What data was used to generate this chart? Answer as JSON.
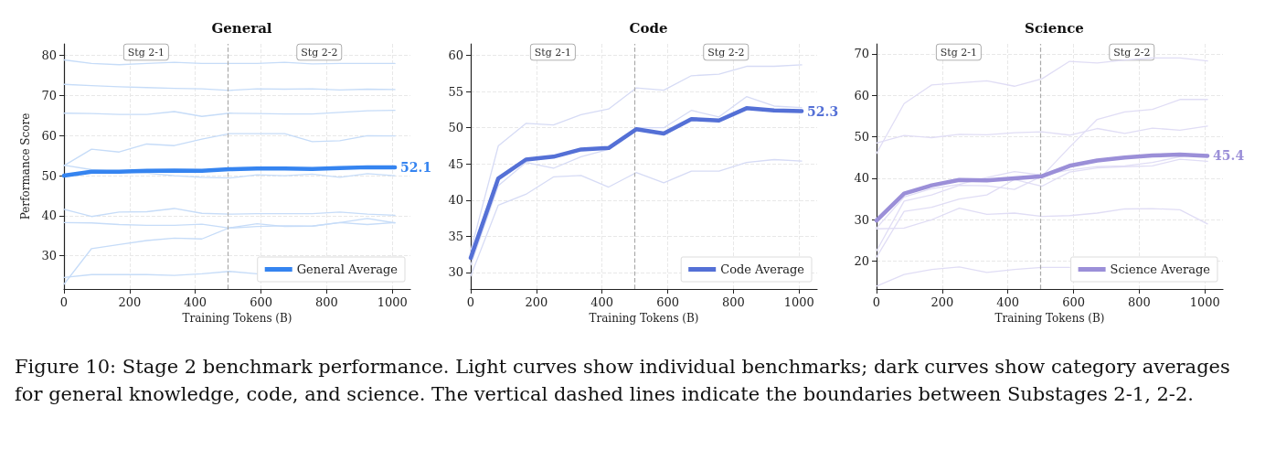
{
  "chart_data": [
    {
      "type": "line",
      "title": "General",
      "xlabel": "Training Tokens (B)",
      "ylabel": "Performance Score",
      "x": [
        0,
        84,
        168,
        252,
        336,
        420,
        504,
        588,
        672,
        756,
        840,
        924,
        1008
      ],
      "xlim": [
        0,
        1055
      ],
      "xticks": [
        0,
        200,
        400,
        600,
        800,
        1000
      ],
      "ylim": [
        21.7,
        82.9
      ],
      "yticks": [
        30,
        40,
        50,
        60,
        70,
        80
      ],
      "grid": true,
      "legend": "bottom right",
      "marker": "none",
      "line_style": "solid",
      "series": [
        {
          "color": "#c6dcf8",
          "values": [
            78.9,
            78,
            77.7,
            78,
            78.3,
            78,
            78,
            78,
            78.3,
            77.9,
            78,
            78,
            78
          ]
        },
        {
          "color": "#c6dcf8",
          "values": [
            72.8,
            72.5,
            72.2,
            72,
            71.8,
            71.7,
            71.3,
            71.7,
            71.6,
            71.7,
            71.4,
            71.6,
            71.5
          ]
        },
        {
          "color": "#c6dcf8",
          "values": [
            65.6,
            65.5,
            65.3,
            65.3,
            66,
            64.8,
            65.6,
            65.5,
            65.4,
            65.4,
            65.8,
            66.2,
            66.3
          ]
        },
        {
          "color": "#c6dcf8",
          "values": [
            52.5,
            56.6,
            55.9,
            57.9,
            57.5,
            59.1,
            60.5,
            60.5,
            60.5,
            58.5,
            58.7,
            60,
            59.9
          ]
        },
        {
          "color": "#c6dcf8",
          "values": [
            52.6,
            51.5,
            51,
            50.6,
            50,
            49.6,
            49.4,
            50.2,
            50,
            50.4,
            49.6,
            50.5,
            50
          ]
        },
        {
          "color": "#c6dcf8",
          "values": [
            41.6,
            39.8,
            40.9,
            41,
            41.8,
            40.6,
            40.4,
            40.5,
            40.5,
            40.5,
            40.9,
            40.4,
            40.1
          ]
        },
        {
          "color": "#c6dcf8",
          "values": [
            38.3,
            38.2,
            37.8,
            37.6,
            37.6,
            37.9,
            36.9,
            37.3,
            37.5,
            37.4,
            38.3,
            37.8,
            38.3
          ]
        },
        {
          "color": "#c6dcf8",
          "values": [
            22.9,
            31.8,
            32.8,
            33.8,
            34.4,
            34.2,
            37,
            38,
            37.3,
            37.4,
            38.3,
            39.3,
            38.2
          ]
        },
        {
          "color": "#c6dcf8",
          "values": [
            24.6,
            25.3,
            25.3,
            25.3,
            25.1,
            25.5,
            26.1,
            25.5,
            null,
            null,
            null,
            null,
            null
          ]
        },
        {
          "name": "General Average",
          "color": "#3584f0",
          "values": [
            50,
            51,
            51,
            51.2,
            51.3,
            51.2,
            51.6,
            51.8,
            51.8,
            51.7,
            51.9,
            52.1,
            52.1
          ],
          "value_labels": [
            null,
            null,
            null,
            null,
            null,
            null,
            null,
            null,
            null,
            null,
            null,
            null,
            "52.1"
          ]
        }
      ],
      "ref_lines": [
        {
          "axis": "x",
          "value": 500,
          "label": null,
          "color": "#aaaaaa",
          "line_style": "dashed"
        }
      ],
      "annotations": [
        "Stg 2-1",
        "Stg 2-2",
        "Figure 10: Stage 2 benchmark performance. Light curves show individual benchmarks; dark curves show category averages for general knowledge, code, and science. The vertical dashed lines indicate the boundaries between Substages 2-1, 2-2."
      ]
    },
    {
      "type": "line",
      "title": "Code",
      "xlabel": "Training Tokens (B)",
      "x": [
        0,
        84,
        168,
        252,
        336,
        420,
        504,
        588,
        672,
        756,
        840,
        924,
        1008
      ],
      "xlim": [
        0,
        1055
      ],
      "xticks": [
        0,
        200,
        400,
        600,
        800,
        1000
      ],
      "ylim": [
        27.7,
        61.6
      ],
      "yticks": [
        30,
        35,
        40,
        45,
        50,
        55,
        60
      ],
      "grid": true,
      "legend": "bottom right",
      "marker": "none",
      "line_style": "solid",
      "series": [
        {
          "color": "#d6dbf5",
          "values": [
            33,
            47.5,
            50.6,
            50.4,
            51.8,
            52.6,
            55.5,
            55.2,
            57.2,
            57.4,
            58.5,
            58.5,
            58.7
          ]
        },
        {
          "color": "#d6dbf5",
          "values": [
            31,
            42,
            45.2,
            44.4,
            46,
            47,
            50,
            50,
            52.4,
            51.5,
            54.3,
            53,
            52.8
          ]
        },
        {
          "color": "#d6dbf5",
          "values": [
            29.5,
            39.3,
            40.8,
            43.2,
            43.4,
            41.8,
            43.8,
            42.4,
            44,
            44,
            45.2,
            45.6,
            45.4
          ]
        },
        {
          "name": "Code Average",
          "color": "#5470d6",
          "values": [
            32,
            43,
            45.6,
            46,
            47,
            47.2,
            49.8,
            49.2,
            51.2,
            51,
            52.7,
            52.4,
            52.3
          ],
          "value_labels": [
            null,
            null,
            null,
            null,
            null,
            null,
            null,
            null,
            null,
            null,
            null,
            null,
            "52.3"
          ]
        }
      ],
      "ref_lines": [
        {
          "axis": "x",
          "value": 500,
          "label": null,
          "color": "#aaaaaa",
          "line_style": "dashed"
        }
      ],
      "annotations": [
        "Stg 2-1",
        "Stg 2-2"
      ]
    },
    {
      "type": "line",
      "title": "Science",
      "xlabel": "Training Tokens (B)",
      "x": [
        0,
        84,
        168,
        252,
        336,
        420,
        504,
        588,
        672,
        756,
        840,
        924,
        1008
      ],
      "xlim": [
        0,
        1055
      ],
      "xticks": [
        0,
        200,
        400,
        600,
        800,
        1000
      ],
      "ylim": [
        13.3,
        72.4
      ],
      "yticks": [
        20,
        30,
        40,
        50,
        60,
        70
      ],
      "grid": true,
      "legend": "bottom right",
      "marker": "none",
      "line_style": "solid",
      "series": [
        {
          "color": "#e0ddf5",
          "values": [
            46,
            58,
            62.5,
            63,
            63.5,
            62.2,
            64,
            68.2,
            67.8,
            68.5,
            69,
            69,
            68.3
          ]
        },
        {
          "color": "#e0ddf5",
          "values": [
            48.5,
            50.3,
            49.8,
            50.6,
            50.5,
            51,
            51.2,
            50.4,
            52,
            50.8,
            52.1,
            51.6,
            52.6
          ]
        },
        {
          "color": "#e0ddf5",
          "values": [
            22.5,
            34.5,
            36,
            38.3,
            38.2,
            37.3,
            40.5,
            47.5,
            54.2,
            56,
            56.6,
            59,
            59
          ]
        },
        {
          "color": "#e0ddf5",
          "values": [
            27.8,
            28,
            30,
            32.8,
            31.3,
            31.6,
            30.8,
            31,
            31.6,
            32.6,
            32.7,
            32.4,
            29
          ]
        },
        {
          "color": "#e0ddf5",
          "values": [
            21,
            32,
            33,
            35,
            36,
            39.7,
            38.1,
            41.5,
            42.5,
            42.8,
            43,
            44.6,
            44.1
          ]
        },
        {
          "color": "#e0ddf5",
          "values": [
            28,
            35.5,
            37.5,
            38.5,
            40.2,
            41.6,
            40.8,
            42,
            42.8,
            43,
            43.8,
            45.2,
            45.8
          ]
        },
        {
          "color": "#e0ddf5",
          "values": [
            14,
            16.8,
            18,
            18.6,
            17.3,
            18,
            18.5,
            18.5,
            null,
            null,
            null,
            null,
            null
          ]
        },
        {
          "name": "Science Average",
          "color": "#9b8fd8",
          "values": [
            29.8,
            36.3,
            38.3,
            39.6,
            39.5,
            40,
            40.5,
            43,
            44.3,
            45,
            45.5,
            45.7,
            45.4
          ],
          "value_labels": [
            null,
            null,
            null,
            null,
            null,
            null,
            null,
            null,
            null,
            null,
            null,
            null,
            "45.4"
          ]
        }
      ],
      "ref_lines": [
        {
          "axis": "x",
          "value": 500,
          "label": null,
          "color": "#aaaaaa",
          "line_style": "dashed"
        }
      ],
      "annotations": [
        "Stg 2-1",
        "Stg 2-2"
      ]
    }
  ]
}
